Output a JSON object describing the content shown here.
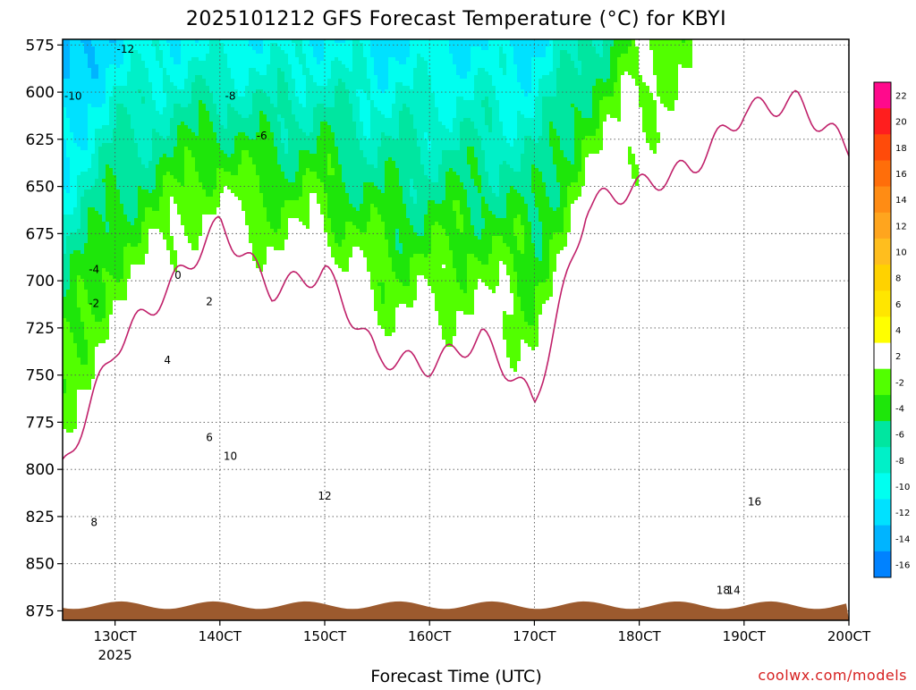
{
  "chart_data": {
    "type": "heatmap",
    "title": "2025101212 GFS Forecast Temperature (°C) for KBYI",
    "xlabel": "Forecast Time (UTC)",
    "ylabel": "",
    "credit": "coolwx.com/models",
    "y_ticks": [
      "575",
      "600",
      "625",
      "650",
      "675",
      "700",
      "725",
      "750",
      "775",
      "800",
      "825",
      "850",
      "875"
    ],
    "x_ticks": [
      "130CT",
      "140CT",
      "150CT",
      "160CT",
      "170CT",
      "180CT",
      "190CT",
      "200CT"
    ],
    "x_year": "2025",
    "ylim": [
      572,
      880
    ],
    "xlim_days": [
      12.5,
      20.0
    ],
    "grid": "dotted",
    "colorbar": {
      "labels": [
        "22",
        "20",
        "18",
        "16",
        "14",
        "12",
        "10",
        "8",
        "6",
        "4",
        "2",
        "-2",
        "-4",
        "-6",
        "-8",
        "-10",
        "-12",
        "-14",
        "-16"
      ],
      "colors": [
        "#ff0a8c",
        "#ff1e1e",
        "#ff4b0a",
        "#ff6e0a",
        "#ff8c14",
        "#ffa51e",
        "#ffbe1e",
        "#ffd200",
        "#ffe600",
        "#ffff00",
        "#ffffff",
        "#52ff00",
        "#1ee60a",
        "#00e6a0",
        "#00f0c8",
        "#00fff0",
        "#00e1ff",
        "#00b4ff",
        "#0082ff"
      ]
    },
    "time_days": [
      12.5,
      13,
      13.5,
      14,
      14.5,
      15,
      15.5,
      16,
      16.5,
      17,
      17.5,
      18,
      18.5,
      19,
      19.5,
      20
    ],
    "freezing_level_hPa": [
      800,
      735,
      705,
      670,
      705,
      695,
      740,
      745,
      730,
      765,
      660,
      650,
      640,
      610,
      605,
      630
    ],
    "level_575_temp": [
      -16,
      -12,
      -11,
      -11,
      -11,
      -11,
      -12,
      -12,
      -12,
      -12,
      -8,
      -3,
      -2,
      1,
      2,
      0
    ],
    "level_850_temp": [
      6,
      8,
      10,
      14,
      6,
      16,
      8,
      8,
      6,
      6,
      8,
      12,
      14,
      18,
      18,
      20
    ],
    "contour_labels": [
      "-12",
      "-10",
      "-8",
      "-6",
      "-4",
      "-2",
      "0",
      "2",
      "4",
      "6",
      "8",
      "10",
      "12",
      "14",
      "16",
      "18"
    ]
  }
}
